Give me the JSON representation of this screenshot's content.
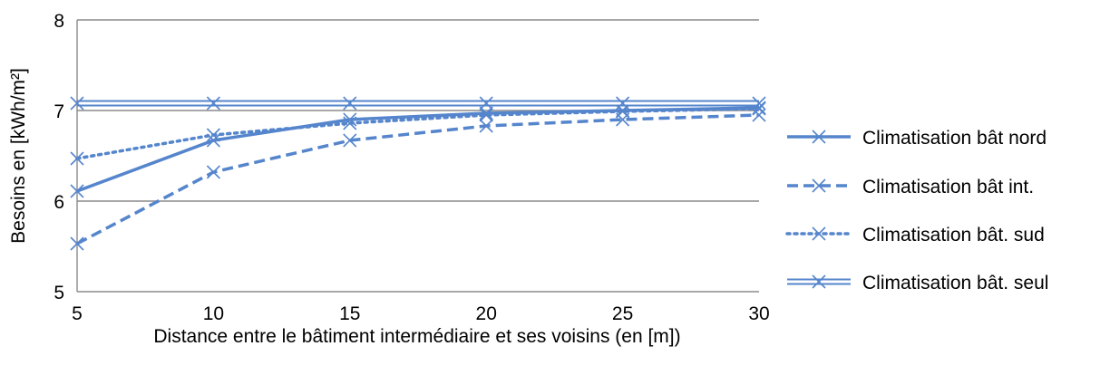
{
  "chart_data": {
    "type": "line",
    "title": "",
    "xlabel": "Distance entre le bâtiment intermédiaire et ses voisins (en [m])",
    "ylabel": "Besoins en [kWh/m²]",
    "x": [
      5,
      10,
      15,
      20,
      25,
      30
    ],
    "xlim": [
      5,
      30
    ],
    "ylim": [
      5,
      8
    ],
    "xticks": [
      "5",
      "10",
      "15",
      "20",
      "25",
      "30"
    ],
    "yticks": [
      "5",
      "6",
      "7",
      "8"
    ],
    "grid": "horizontal",
    "legend_position": "right",
    "series": [
      {
        "name": "Climatisation bât nord",
        "style": "solid",
        "values": [
          6.11,
          6.67,
          6.9,
          6.97,
          7.0,
          7.03
        ]
      },
      {
        "name": "Climatisation bât int.",
        "style": "dashed",
        "values": [
          5.53,
          6.32,
          6.67,
          6.83,
          6.9,
          6.95
        ]
      },
      {
        "name": "Climatisation bât. sud",
        "style": "dotted",
        "values": [
          6.47,
          6.73,
          6.86,
          6.95,
          6.99,
          7.02
        ]
      },
      {
        "name": "Climatisation bât. seul",
        "style": "double",
        "values": [
          7.08,
          7.08,
          7.08,
          7.08,
          7.08,
          7.08
        ]
      }
    ],
    "colors": {
      "series": "#5585cc",
      "grid": "#8c8c8c",
      "axis": "#8c8c8c"
    }
  }
}
